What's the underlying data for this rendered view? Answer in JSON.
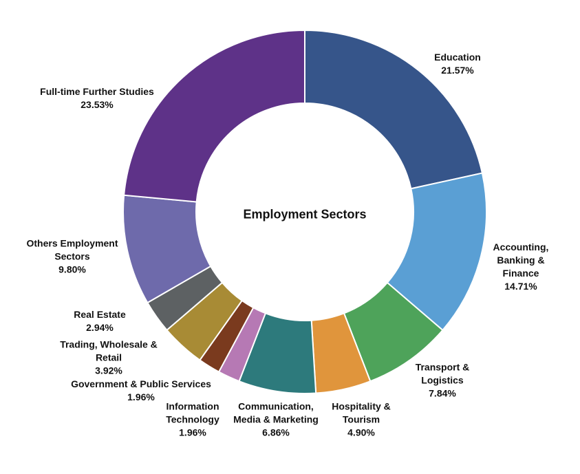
{
  "chart_data": {
    "type": "donut",
    "title": "Employment Sectors",
    "categories": [
      "Education",
      "Accounting, Banking & Finance",
      "Transport & Logistics",
      "Hospitality & Tourism",
      "Communication, Media & Marketing",
      "Information Technology",
      "Government & Public Services",
      "Trading, Wholesale & Retail",
      "Real Estate",
      "Others Employment Sectors",
      "Full-time Further Studies"
    ],
    "values": [
      21.57,
      14.71,
      7.84,
      4.9,
      6.86,
      1.96,
      1.96,
      3.92,
      2.94,
      9.8,
      23.53
    ],
    "value_labels": [
      "21.57%",
      "14.71%",
      "7.84%",
      "4.90%",
      "6.86%",
      "1.96%",
      "1.96%",
      "3.92%",
      "2.94%",
      "9.80%",
      "23.53%"
    ],
    "colors": [
      "#36558a",
      "#5a9fd4",
      "#4ea35a",
      "#e0953c",
      "#2d7a7c",
      "#b679b4",
      "#7a3a1e",
      "#a88b35",
      "#5d6163",
      "#6e6aab",
      "#5e3288"
    ]
  }
}
